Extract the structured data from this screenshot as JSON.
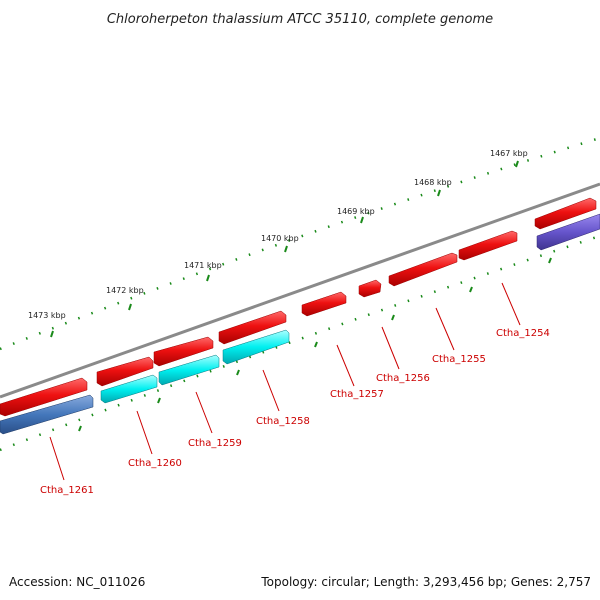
{
  "title": "Chloroherpeton thalassium ATCC 35110, complete genome",
  "footer": {
    "accession": "Accession: NC_011026",
    "summary": "Topology: circular; Length: 3,293,456 bp; Genes: 2,757"
  },
  "ruler": {
    "ticks": [
      {
        "kbp": 1467,
        "label": "1467 kbp"
      },
      {
        "kbp": 1468,
        "label": "1468 kbp"
      },
      {
        "kbp": 1469,
        "label": "1469 kbp"
      },
      {
        "kbp": 1470,
        "label": "1470 kbp"
      },
      {
        "kbp": 1471,
        "label": "1471 kbp"
      },
      {
        "kbp": 1472,
        "label": "1472 kbp"
      },
      {
        "kbp": 1473,
        "label": "1473 kbp"
      }
    ]
  },
  "genes": [
    {
      "name": "Ctha_1254",
      "strand": "plus",
      "color": "#ee1111"
    },
    {
      "name": "Ctha_1255",
      "strand": "plus",
      "color": "#ee1111"
    },
    {
      "name": "Ctha_1256",
      "strand": "plus",
      "color": "#ee1111"
    },
    {
      "name": "Ctha_1257",
      "strand": "plus",
      "color": "#ee1111"
    },
    {
      "name": "Ctha_1258",
      "strand": "plus",
      "color": "#ee1111"
    },
    {
      "name": "Ctha_1259",
      "strand": "plus",
      "color": "#ee1111"
    },
    {
      "name": "Ctha_1260",
      "strand": "plus",
      "color": "#ee1111"
    },
    {
      "name": "Ctha_1261",
      "strand": "plus",
      "color": "#ee1111"
    },
    {
      "name": "",
      "strand": "plus",
      "color": "#ee1111"
    }
  ],
  "features": [
    {
      "color": "#00f0f0"
    },
    {
      "color": "#00f0f0"
    },
    {
      "color": "#00f0f0"
    },
    {
      "color": "#4477bb"
    },
    {
      "color": "#6655cc"
    }
  ],
  "colors": {
    "backbone": "#888888",
    "ruler_dots": "#1a8a1a",
    "label_line": "#cc0000"
  }
}
